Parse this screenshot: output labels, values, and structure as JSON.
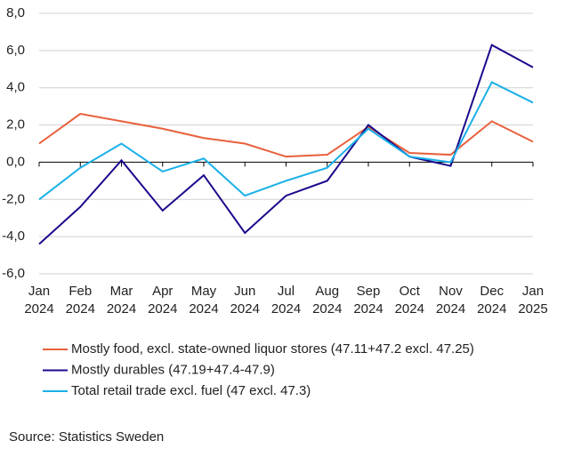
{
  "chart_data": {
    "type": "line",
    "categories": [
      "Jan 2024",
      "Feb 2024",
      "Mar 2024",
      "Apr 2024",
      "May 2024",
      "Jun 2024",
      "Jul 2024",
      "Aug 2024",
      "Sep 2024",
      "Oct 2024",
      "Nov 2024",
      "Dec 2024",
      "Jan 2025"
    ],
    "series": [
      {
        "name": "Mostly food, excl. state-owned liquor stores (47.11+47.2 excl. 47.25)",
        "color": "#e8603c",
        "values": [
          1.0,
          2.6,
          2.2,
          1.8,
          1.3,
          1.0,
          0.3,
          0.4,
          1.9,
          0.5,
          0.4,
          2.2,
          1.1
        ]
      },
      {
        "name": "Mostly durables (47.19+47.4-47.9)",
        "color": "#1a0a8c",
        "values": [
          -4.4,
          -2.4,
          0.1,
          -2.6,
          -0.7,
          -3.8,
          -1.8,
          -1.0,
          2.0,
          0.3,
          -0.2,
          6.3,
          5.1
        ]
      },
      {
        "name": "Total retail trade excl. fuel (47 excl. 47.3)",
        "color": "#1ab0e8",
        "values": [
          -2.0,
          -0.3,
          1.0,
          -0.5,
          0.2,
          -1.8,
          -1.0,
          -0.3,
          1.8,
          0.3,
          0.0,
          4.3,
          3.2
        ]
      }
    ],
    "ylim": [
      -6,
      8
    ],
    "yticks": [
      {
        "value": -6,
        "label": "-6,0"
      },
      {
        "value": -4,
        "label": "-4,0"
      },
      {
        "value": -2,
        "label": "-2,0"
      },
      {
        "value": 0,
        "label": "0,0"
      },
      {
        "value": 2,
        "label": "2,0"
      },
      {
        "value": 4,
        "label": "4,0"
      },
      {
        "value": 6,
        "label": "6,0"
      },
      {
        "value": 8,
        "label": "8,0"
      }
    ],
    "grid": true,
    "source": "Source: Statistics Sweden"
  }
}
